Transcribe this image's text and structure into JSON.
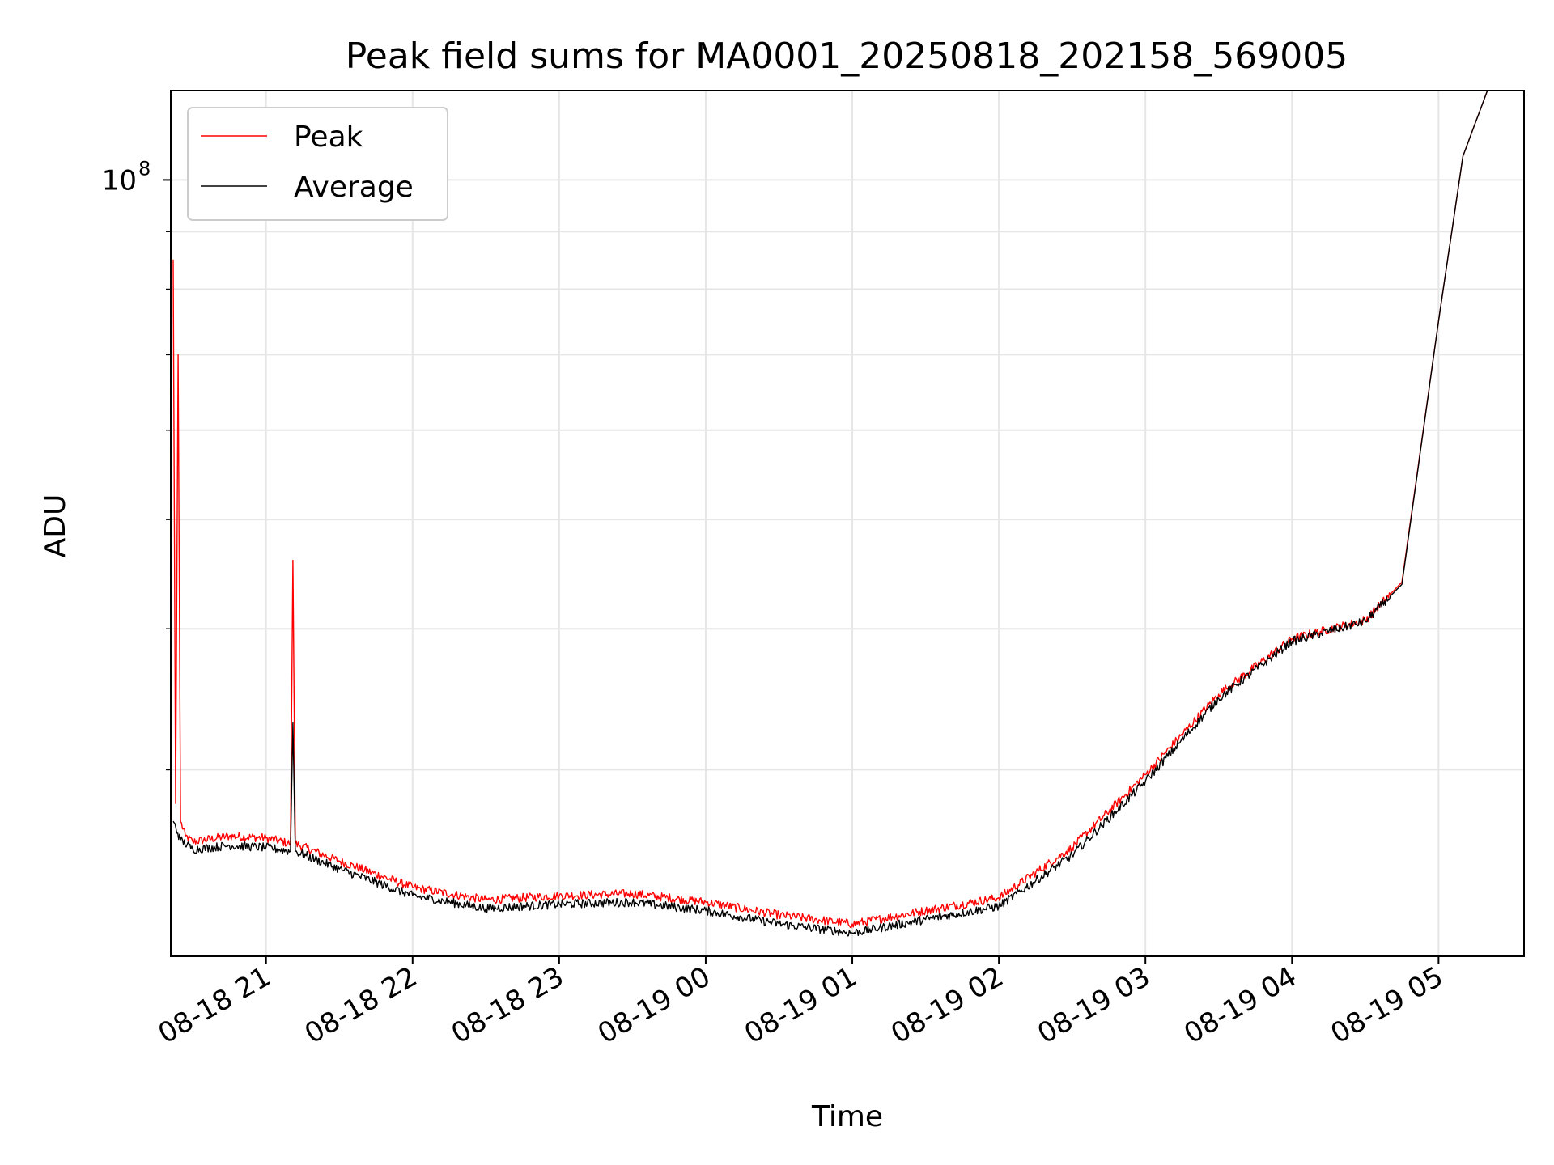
{
  "chart_data": {
    "type": "line",
    "title": "Peak field sums for MA0001_20250818_202158_569005",
    "xlabel": "Time",
    "ylabel": "ADU",
    "y_scale": "log",
    "ylim": [
      20500000,
      120000000
    ],
    "xlim": [
      "2025-08-18 20:21",
      "2025-08-19 05:35"
    ],
    "x_tick_labels": [
      "08-18 21",
      "08-18 22",
      "08-18 23",
      "08-19 00",
      "08-19 01",
      "08-19 02",
      "08-19 03",
      "08-19 04",
      "08-19 05"
    ],
    "y_tick_label": {
      "base": "10",
      "exponent": "8"
    },
    "grid": true,
    "legend": {
      "position": "top-left",
      "entries": [
        "Peak",
        "Average"
      ]
    },
    "series": [
      {
        "name": "Peak",
        "color": "#ff0000",
        "x": [
          "2025-08-18 20:22",
          "2025-08-18 20:23",
          "2025-08-18 20:24",
          "2025-08-18 20:25",
          "2025-08-18 20:27",
          "2025-08-18 20:30",
          "2025-08-18 20:45",
          "2025-08-18 21:00",
          "2025-08-18 21:10",
          "2025-08-18 21:11",
          "2025-08-18 21:12",
          "2025-08-18 21:30",
          "2025-08-18 22:00",
          "2025-08-18 22:30",
          "2025-08-18 23:00",
          "2025-08-18 23:30",
          "2025-08-19 00:00",
          "2025-08-19 00:30",
          "2025-08-19 01:00",
          "2025-08-19 01:30",
          "2025-08-19 02:00",
          "2025-08-19 02:30",
          "2025-08-19 03:00",
          "2025-08-19 03:30",
          "2025-08-19 04:00",
          "2025-08-19 04:30",
          "2025-08-19 04:45",
          "2025-08-19 05:00",
          "2025-08-19 05:10",
          "2025-08-19 05:20"
        ],
        "values": [
          85000000,
          28000000,
          70000000,
          27000000,
          26200000,
          25900000,
          26200000,
          26100000,
          25800000,
          46000000,
          25800000,
          24900000,
          23600000,
          23000000,
          23200000,
          23300000,
          22900000,
          22300000,
          21900000,
          22500000,
          23100000,
          25600000,
          29700000,
          35000000,
          39200000,
          40700000,
          44000000,
          75000000,
          105000000,
          120000000
        ]
      },
      {
        "name": "Average",
        "color": "#000000",
        "x": [
          "2025-08-18 20:22",
          "2025-08-18 20:25",
          "2025-08-18 20:30",
          "2025-08-18 20:45",
          "2025-08-18 21:00",
          "2025-08-18 21:10",
          "2025-08-18 21:11",
          "2025-08-18 21:12",
          "2025-08-18 21:30",
          "2025-08-18 22:00",
          "2025-08-18 22:30",
          "2025-08-18 23:00",
          "2025-08-18 23:30",
          "2025-08-19 00:00",
          "2025-08-19 00:30",
          "2025-08-19 01:00",
          "2025-08-19 01:30",
          "2025-08-19 02:00",
          "2025-08-19 02:30",
          "2025-08-19 03:00",
          "2025-08-19 03:30",
          "2025-08-19 04:00",
          "2025-08-19 04:30",
          "2025-08-19 04:45",
          "2025-08-19 05:00",
          "2025-08-19 05:10",
          "2025-08-19 05:20"
        ],
        "values": [
          27000000,
          26000000,
          25500000,
          25700000,
          25600000,
          25400000,
          33000000,
          25400000,
          24500000,
          23200000,
          22600000,
          22800000,
          22900000,
          22500000,
          21900000,
          21500000,
          22100000,
          22700000,
          25200000,
          29300000,
          34700000,
          39000000,
          40600000,
          43800000,
          75000000,
          105000000,
          120000000
        ]
      }
    ]
  }
}
